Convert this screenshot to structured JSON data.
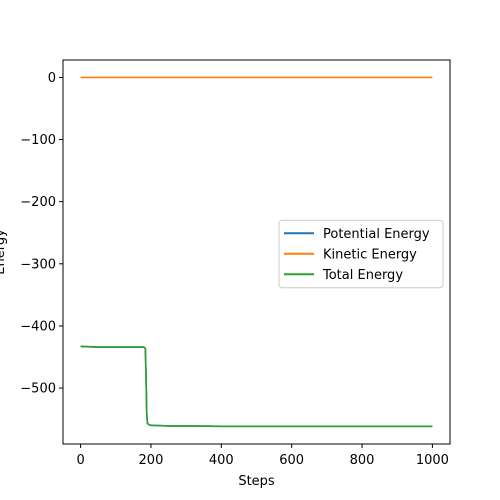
{
  "chart_data": {
    "type": "line",
    "title": "",
    "xlabel": "Steps",
    "ylabel": "Energy",
    "xlim": [
      -50,
      1050
    ],
    "ylim": [
      -590,
      28
    ],
    "xticks": [
      0,
      200,
      400,
      600,
      800,
      1000
    ],
    "yticks": [
      0,
      -100,
      -200,
      -300,
      -400,
      -500
    ],
    "xtick_labels": [
      "0",
      "200",
      "400",
      "600",
      "800",
      "1000"
    ],
    "ytick_labels": [
      "0",
      "−100",
      "−200",
      "−300",
      "−400",
      "−500"
    ],
    "grid": false,
    "legend_position": "center-right",
    "series": [
      {
        "name": "Potential Energy",
        "color": "#1f77b4",
        "x": [
          0,
          50,
          100,
          150,
          180,
          184,
          186,
          188,
          190,
          195,
          200,
          250,
          300,
          400,
          600,
          800,
          1000
        ],
        "y": [
          -433,
          -434,
          -434,
          -434,
          -434,
          -436,
          -480,
          -540,
          -557,
          -559,
          -560,
          -561,
          -561,
          -561.5,
          -561.5,
          -561.5,
          -561.5
        ]
      },
      {
        "name": "Kinetic Energy",
        "color": "#ff7f0e",
        "x": [
          0,
          200,
          400,
          600,
          800,
          1000
        ],
        "y": [
          0,
          0,
          0,
          0,
          0,
          0
        ]
      },
      {
        "name": "Total Energy",
        "color": "#2ca02c",
        "x": [
          0,
          50,
          100,
          150,
          180,
          184,
          186,
          188,
          190,
          195,
          200,
          250,
          300,
          400,
          600,
          800,
          1000
        ],
        "y": [
          -433,
          -434,
          -434,
          -434,
          -434,
          -436,
          -480,
          -540,
          -557,
          -559,
          -560,
          -561,
          -561,
          -561.5,
          -561.5,
          -561.5,
          -561.5
        ]
      }
    ]
  }
}
